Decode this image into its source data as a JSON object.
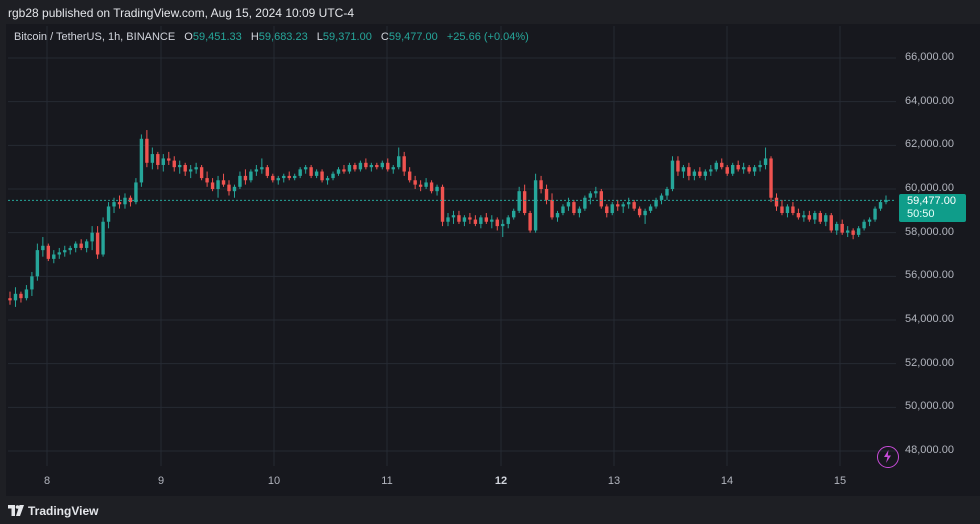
{
  "header": {
    "published": "rgb28 published on TradingView.com, Aug 15, 2024 10:09 UTC-4"
  },
  "legend": {
    "symbol": "Bitcoin / TetherUS, 1h, BINANCE",
    "o_key": "O",
    "o_val": "59,451.33",
    "h_key": "H",
    "h_val": "59,683.23",
    "l_key": "L",
    "l_val": "59,371.00",
    "c_key": "C",
    "c_val": "59,477.00",
    "change": "+25.66 (+0.04%)"
  },
  "price_label": {
    "price": "59,477.00",
    "timer": "50:50"
  },
  "footer": {
    "brand": "TradingView"
  },
  "colors": {
    "up": "#26a69a",
    "down": "#ef5350",
    "grid": "#262a33",
    "background": "#17181e",
    "accent": "#0f9d8a"
  },
  "icons": {
    "logo": "tradingview-logo-icon",
    "bolt": "lightning-icon"
  },
  "chart_data": {
    "type": "candlestick",
    "yaxis": {
      "min": 47000,
      "max": 66500,
      "ticks": [
        "48,000.00",
        "50,000.00",
        "52,000.00",
        "54,000.00",
        "56,000.00",
        "58,000.00",
        "60,000.00",
        "62,000.00",
        "64,000.00",
        "66,000.00"
      ]
    },
    "xaxis": {
      "labels": [
        "8",
        "9",
        "10",
        "11",
        "12",
        "13",
        "14",
        "15"
      ],
      "bold": "12"
    },
    "last_price": 59477,
    "ohlc": [
      [
        55000,
        55300,
        54700,
        54900
      ],
      [
        54900,
        55500,
        54600,
        55200
      ],
      [
        55200,
        55300,
        54800,
        55000
      ],
      [
        55000,
        55600,
        54900,
        55400
      ],
      [
        55400,
        56200,
        55100,
        56000
      ],
      [
        56000,
        57500,
        55800,
        57200
      ],
      [
        57200,
        57800,
        56900,
        57400
      ],
      [
        57400,
        57500,
        56700,
        56800
      ],
      [
        56800,
        57200,
        56600,
        57000
      ],
      [
        57000,
        57300,
        56800,
        57100
      ],
      [
        57100,
        57400,
        56900,
        57200
      ],
      [
        57200,
        57400,
        57000,
        57300
      ],
      [
        57300,
        57600,
        57100,
        57500
      ],
      [
        57500,
        57700,
        57200,
        57300
      ],
      [
        57300,
        57700,
        57100,
        57600
      ],
      [
        57600,
        58300,
        57200,
        58000
      ],
      [
        58000,
        58300,
        56800,
        57000
      ],
      [
        57000,
        58700,
        56900,
        58500
      ],
      [
        58500,
        59400,
        58200,
        59200
      ],
      [
        59200,
        59600,
        58900,
        59400
      ],
      [
        59400,
        59700,
        59100,
        59300
      ],
      [
        59300,
        59800,
        59100,
        59600
      ],
      [
        59600,
        59700,
        59200,
        59400
      ],
      [
        59400,
        60500,
        59300,
        60300
      ],
      [
        60300,
        62500,
        60100,
        62300
      ],
      [
        62300,
        62700,
        61000,
        61200
      ],
      [
        61200,
        61900,
        60900,
        61600
      ],
      [
        61600,
        61700,
        60900,
        61100
      ],
      [
        61100,
        61600,
        60800,
        61400
      ],
      [
        61400,
        61700,
        61100,
        61300
      ],
      [
        61300,
        61500,
        60800,
        61000
      ],
      [
        61000,
        61300,
        60700,
        61100
      ],
      [
        61100,
        61200,
        60600,
        60800
      ],
      [
        60800,
        61100,
        60500,
        60900
      ],
      [
        60900,
        61200,
        60700,
        61000
      ],
      [
        61000,
        61100,
        60400,
        60500
      ],
      [
        60500,
        60800,
        60100,
        60300
      ],
      [
        60300,
        60500,
        59900,
        60000
      ],
      [
        60000,
        60600,
        59600,
        60400
      ],
      [
        60400,
        60700,
        60100,
        60200
      ],
      [
        60200,
        60400,
        59700,
        59900
      ],
      [
        59900,
        60200,
        59600,
        60100
      ],
      [
        60100,
        60800,
        60000,
        60600
      ],
      [
        60600,
        60900,
        60200,
        60400
      ],
      [
        60400,
        60900,
        60300,
        60800
      ],
      [
        60800,
        61100,
        60600,
        60900
      ],
      [
        60900,
        61400,
        60700,
        61000
      ],
      [
        61000,
        61100,
        60500,
        60600
      ],
      [
        60600,
        60700,
        60300,
        60400
      ],
      [
        60400,
        60600,
        60200,
        60500
      ],
      [
        60500,
        60700,
        60300,
        60600
      ],
      [
        60600,
        60800,
        60400,
        60500
      ],
      [
        60500,
        60700,
        60400,
        60600
      ],
      [
        60600,
        61000,
        60500,
        60900
      ],
      [
        60900,
        61100,
        60700,
        61000
      ],
      [
        61000,
        61100,
        60500,
        60600
      ],
      [
        60600,
        60900,
        60500,
        60800
      ],
      [
        60800,
        60900,
        60300,
        60400
      ],
      [
        60400,
        60600,
        60200,
        60500
      ],
      [
        60500,
        60800,
        60400,
        60700
      ],
      [
        60700,
        61000,
        60600,
        60900
      ],
      [
        60900,
        61100,
        60700,
        60800
      ],
      [
        60800,
        61200,
        60700,
        61100
      ],
      [
        61100,
        61200,
        60800,
        60900
      ],
      [
        60900,
        61300,
        60800,
        61200
      ],
      [
        61200,
        61400,
        60900,
        61000
      ],
      [
        61000,
        61200,
        60800,
        61100
      ],
      [
        61100,
        61200,
        60900,
        61000
      ],
      [
        61000,
        61300,
        60900,
        61200
      ],
      [
        61200,
        61400,
        60800,
        60900
      ],
      [
        60900,
        61100,
        60700,
        61000
      ],
      [
        61000,
        61900,
        60900,
        61500
      ],
      [
        61500,
        61700,
        60600,
        60800
      ],
      [
        60800,
        61000,
        60300,
        60400
      ],
      [
        60400,
        60600,
        60000,
        60200
      ],
      [
        60200,
        60400,
        59900,
        60100
      ],
      [
        60100,
        60500,
        60000,
        60300
      ],
      [
        60300,
        60400,
        59800,
        59900
      ],
      [
        59900,
        60200,
        59700,
        60100
      ],
      [
        60100,
        60200,
        58300,
        58500
      ],
      [
        58500,
        58900,
        58300,
        58700
      ],
      [
        58700,
        59000,
        58400,
        58800
      ],
      [
        58800,
        59000,
        58400,
        58500
      ],
      [
        58500,
        58800,
        58300,
        58700
      ],
      [
        58700,
        58900,
        58400,
        58600
      ],
      [
        58600,
        58800,
        58300,
        58400
      ],
      [
        58400,
        58800,
        58200,
        58700
      ],
      [
        58700,
        58900,
        58400,
        58500
      ],
      [
        58500,
        58800,
        58200,
        58600
      ],
      [
        58600,
        58700,
        58100,
        58300
      ],
      [
        58300,
        58600,
        57800,
        58400
      ],
      [
        58400,
        58800,
        58200,
        58700
      ],
      [
        58700,
        59100,
        58600,
        59000
      ],
      [
        59000,
        60100,
        58900,
        59900
      ],
      [
        59900,
        60200,
        58800,
        58900
      ],
      [
        58900,
        59000,
        58000,
        58100
      ],
      [
        58100,
        60700,
        58000,
        60400
      ],
      [
        60400,
        60600,
        59800,
        60000
      ],
      [
        60000,
        60200,
        59300,
        59500
      ],
      [
        59500,
        59800,
        58600,
        58700
      ],
      [
        58700,
        59000,
        58500,
        58900
      ],
      [
        58900,
        59300,
        58800,
        59200
      ],
      [
        59200,
        59600,
        59000,
        59400
      ],
      [
        59400,
        59500,
        58800,
        58900
      ],
      [
        58900,
        59200,
        58700,
        59100
      ],
      [
        59100,
        59700,
        59000,
        59600
      ],
      [
        59600,
        59900,
        59300,
        59800
      ],
      [
        59800,
        60100,
        59600,
        59900
      ],
      [
        59900,
        60000,
        59100,
        59200
      ],
      [
        59200,
        59300,
        58700,
        58900
      ],
      [
        58900,
        59400,
        58800,
        59300
      ],
      [
        59300,
        59500,
        59000,
        59200
      ],
      [
        59200,
        59400,
        58900,
        59300
      ],
      [
        59300,
        59600,
        59100,
        59400
      ],
      [
        59400,
        59500,
        59000,
        59100
      ],
      [
        59100,
        59200,
        58700,
        58800
      ],
      [
        58800,
        59100,
        58400,
        59000
      ],
      [
        59000,
        59300,
        58900,
        59200
      ],
      [
        59200,
        59600,
        59100,
        59500
      ],
      [
        59500,
        59800,
        59300,
        59700
      ],
      [
        59700,
        60100,
        59500,
        60000
      ],
      [
        60000,
        61500,
        59900,
        61300
      ],
      [
        61300,
        61500,
        60600,
        60800
      ],
      [
        60800,
        61100,
        60500,
        61000
      ],
      [
        61000,
        61200,
        60400,
        60600
      ],
      [
        60600,
        60900,
        60400,
        60800
      ],
      [
        60800,
        61000,
        60500,
        60600
      ],
      [
        60600,
        60900,
        60400,
        60800
      ],
      [
        60800,
        61100,
        60600,
        60900
      ],
      [
        60900,
        61300,
        60800,
        61200
      ],
      [
        61200,
        61400,
        60900,
        61000
      ],
      [
        61000,
        61100,
        60600,
        60700
      ],
      [
        60700,
        61200,
        60600,
        61100
      ],
      [
        61100,
        61300,
        60800,
        60900
      ],
      [
        60900,
        61200,
        60700,
        61000
      ],
      [
        61000,
        61100,
        60700,
        60800
      ],
      [
        60800,
        61100,
        60600,
        61000
      ],
      [
        61000,
        61300,
        60800,
        61100
      ],
      [
        61100,
        61900,
        60900,
        61400
      ],
      [
        61400,
        61500,
        59400,
        59600
      ],
      [
        59600,
        59800,
        59000,
        59200
      ],
      [
        59200,
        59500,
        58800,
        58900
      ],
      [
        58900,
        59300,
        58700,
        59200
      ],
      [
        59200,
        59400,
        58800,
        58900
      ],
      [
        58900,
        59100,
        58600,
        58700
      ],
      [
        58700,
        59000,
        58500,
        58800
      ],
      [
        58800,
        59000,
        58500,
        58600
      ],
      [
        58600,
        59000,
        58400,
        58900
      ],
      [
        58900,
        59000,
        58400,
        58500
      ],
      [
        58500,
        58900,
        58300,
        58800
      ],
      [
        58800,
        58900,
        58000,
        58100
      ],
      [
        58100,
        58500,
        57900,
        58400
      ],
      [
        58400,
        58600,
        57900,
        58000
      ],
      [
        58000,
        58300,
        57800,
        58100
      ],
      [
        58100,
        58200,
        57700,
        57900
      ],
      [
        57900,
        58300,
        57800,
        58200
      ],
      [
        58200,
        58600,
        58100,
        58500
      ],
      [
        58500,
        58700,
        58300,
        58600
      ],
      [
        58600,
        59200,
        58500,
        59100
      ],
      [
        59100,
        59500,
        59000,
        59400
      ],
      [
        59400,
        59700,
        59300,
        59500
      ]
    ]
  }
}
